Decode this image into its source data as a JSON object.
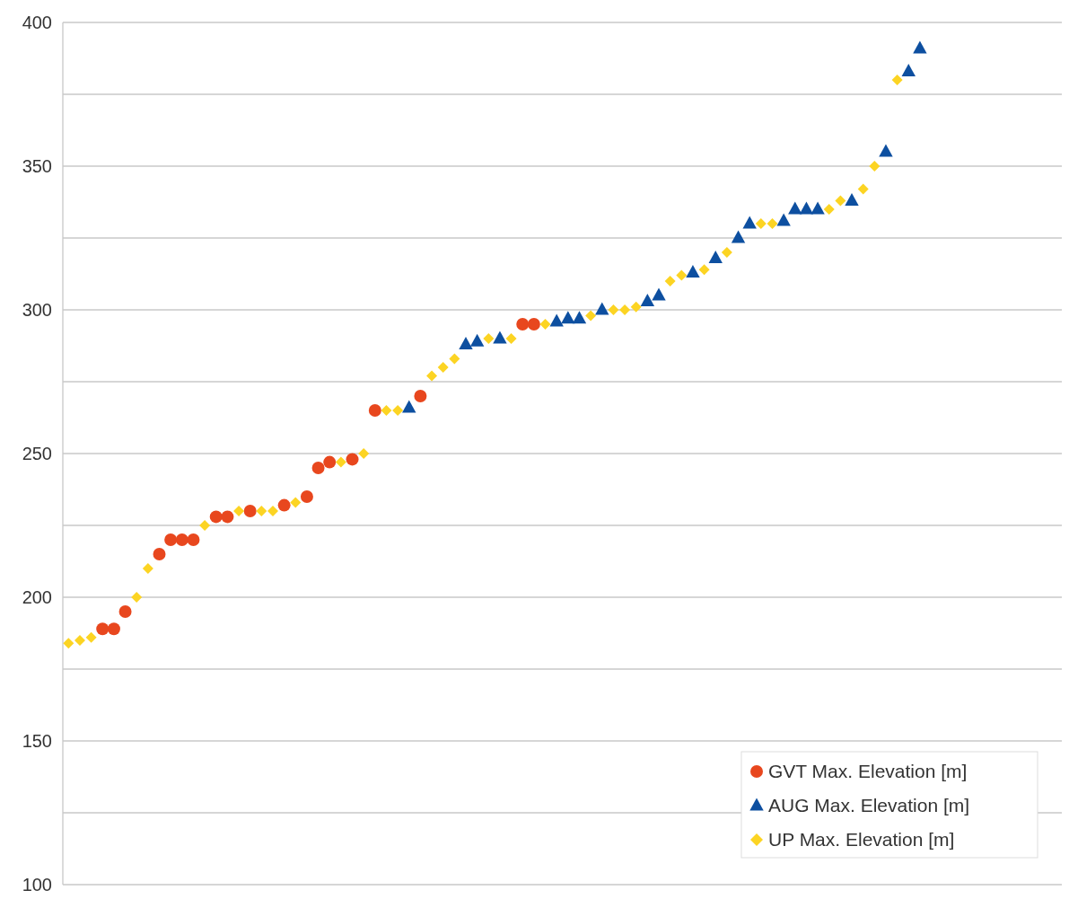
{
  "chart_data": {
    "type": "scatter",
    "categories": [
      null,
      null,
      null,
      null,
      null,
      null,
      null,
      null,
      null,
      null,
      null,
      null,
      null,
      null,
      null,
      null,
      null,
      null,
      null,
      null,
      null,
      null,
      null,
      null,
      null,
      null,
      null,
      null,
      null,
      null,
      null,
      null,
      null,
      null,
      null,
      null,
      null,
      null,
      null,
      null,
      null,
      null,
      null,
      null,
      null,
      null,
      null,
      null,
      null,
      null,
      null,
      null,
      null,
      null,
      null,
      null,
      null,
      null,
      null,
      null,
      null,
      null,
      null,
      null,
      null,
      null,
      null,
      null,
      null,
      null,
      null,
      null,
      null,
      null,
      null,
      null,
      null,
      null,
      null,
      null,
      null,
      null,
      null,
      null,
      null,
      null,
      null,
      null
    ],
    "series": [
      {
        "name": "GVT Max. Elevation [m]",
        "color": "#e8471e",
        "marker": "circle",
        "values": [
          null,
          null,
          null,
          189,
          189,
          195,
          null,
          null,
          215,
          220,
          220,
          220,
          null,
          228,
          228,
          null,
          230,
          null,
          null,
          232,
          null,
          235,
          245,
          247,
          null,
          248,
          null,
          265,
          null,
          null,
          null,
          270,
          null,
          null,
          null,
          null,
          null,
          null,
          null,
          null,
          295,
          295,
          null,
          null,
          null,
          null,
          null,
          null,
          null,
          null,
          null,
          null,
          null,
          null,
          null,
          null,
          null,
          null,
          null,
          null,
          null,
          null,
          null,
          null,
          null,
          null,
          null,
          null,
          null,
          null,
          null,
          null,
          null,
          null,
          null,
          null,
          null,
          null,
          null,
          null,
          null,
          null,
          null,
          null,
          null,
          null,
          null,
          null
        ]
      },
      {
        "name": "AUG Max. Elevation [m]",
        "color": "#0d4fa0",
        "marker": "triangle",
        "values": [
          null,
          null,
          null,
          null,
          null,
          null,
          null,
          null,
          null,
          null,
          null,
          null,
          null,
          null,
          null,
          null,
          null,
          null,
          null,
          null,
          null,
          null,
          null,
          null,
          null,
          null,
          null,
          null,
          null,
          null,
          266,
          null,
          null,
          null,
          null,
          288,
          289,
          null,
          290,
          null,
          null,
          null,
          null,
          296,
          297,
          297,
          null,
          300,
          null,
          null,
          null,
          303,
          305,
          null,
          null,
          313,
          null,
          318,
          null,
          325,
          330,
          null,
          null,
          331,
          335,
          335,
          335,
          null,
          null,
          338,
          null,
          null,
          355,
          null,
          383,
          391,
          null,
          null,
          null,
          null,
          null,
          null,
          null,
          null,
          null,
          null,
          null,
          null
        ]
      },
      {
        "name": "UP Max. Elevation [m]",
        "color": "#fcd423",
        "marker": "diamond",
        "values": [
          184,
          185,
          186,
          null,
          null,
          null,
          200,
          210,
          null,
          null,
          null,
          null,
          225,
          null,
          null,
          230,
          null,
          230,
          230,
          null,
          233,
          null,
          null,
          null,
          247,
          null,
          250,
          null,
          265,
          265,
          null,
          null,
          277,
          280,
          283,
          null,
          null,
          290,
          null,
          290,
          null,
          null,
          295,
          null,
          null,
          null,
          298,
          null,
          300,
          300,
          301,
          null,
          null,
          310,
          312,
          null,
          314,
          null,
          320,
          null,
          null,
          330,
          330,
          null,
          null,
          null,
          null,
          335,
          338,
          null,
          342,
          350,
          null,
          380,
          null,
          null,
          null,
          null,
          null,
          null,
          null,
          null,
          null,
          null,
          null,
          null,
          null,
          null
        ]
      }
    ],
    "ylim": [
      100,
      400
    ],
    "yticks": [
      100,
      {
        "value": 125,
        "label": null
      },
      150,
      {
        "value": 175,
        "label": null
      },
      200,
      {
        "value": 225,
        "label": null
      },
      250,
      {
        "value": 275,
        "label": null
      },
      300,
      {
        "value": 325,
        "label": null
      },
      350,
      {
        "value": 375,
        "label": null
      },
      400
    ],
    "grid": "y",
    "legend": "bottom right"
  }
}
